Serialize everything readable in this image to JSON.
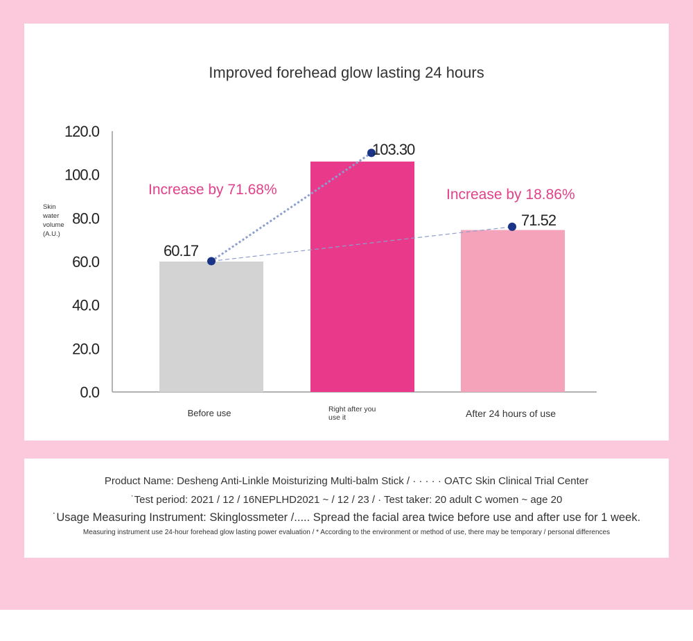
{
  "chart_data": {
    "type": "bar",
    "title": "Improved forehead glow lasting 24 hours",
    "ylabel": [
      "Skin",
      "water",
      "volume",
      "(A.U.)"
    ],
    "xlabel": "",
    "ylim": [
      0,
      120
    ],
    "yticks": [
      "0.0",
      "20.0",
      "40.0",
      "60.0",
      "80.0",
      "100.0",
      "120.0"
    ],
    "categories": [
      [
        "Before use"
      ],
      [
        "Right after you",
        "use it"
      ],
      [
        "After 24 hours of use"
      ]
    ],
    "values": [
      60.17,
      103.3,
      71.52
    ],
    "bar_heights": [
      60,
      106,
      74.5
    ],
    "value_labels": [
      "60.17",
      "103.30",
      "71.52"
    ],
    "bar_colors": [
      "#d3d3d3",
      "#e9398a",
      "#f5a3ba"
    ],
    "annotations": [
      "Increase by 71.68%",
      "Increase by 18.86%"
    ],
    "annotation_color": "#e0418a",
    "marker_color": "#1a3487",
    "connector_color": "#8c9fcf",
    "grid": false,
    "legend": "none"
  },
  "notes": [
    "Product Name: Desheng Anti-Linkle Moisturizing Multi-balm Stick / · · · · · OATC Skin Clinical Trial Center",
    "˙Test period: 2021 / 12 / 16NEPLHD2021 ~ / 12 / 23 / · Test taker: 20 adult C women ~ age 20",
    "˙Usage Measuring Instrument: Skinglossmeter /..... Spread the facial area twice before use and after use for 1 week.",
    "Measuring instrument use 24-hour forehead glow lasting power evaluation / * According to the environment or method of use, there may be temporary / personal differences"
  ]
}
